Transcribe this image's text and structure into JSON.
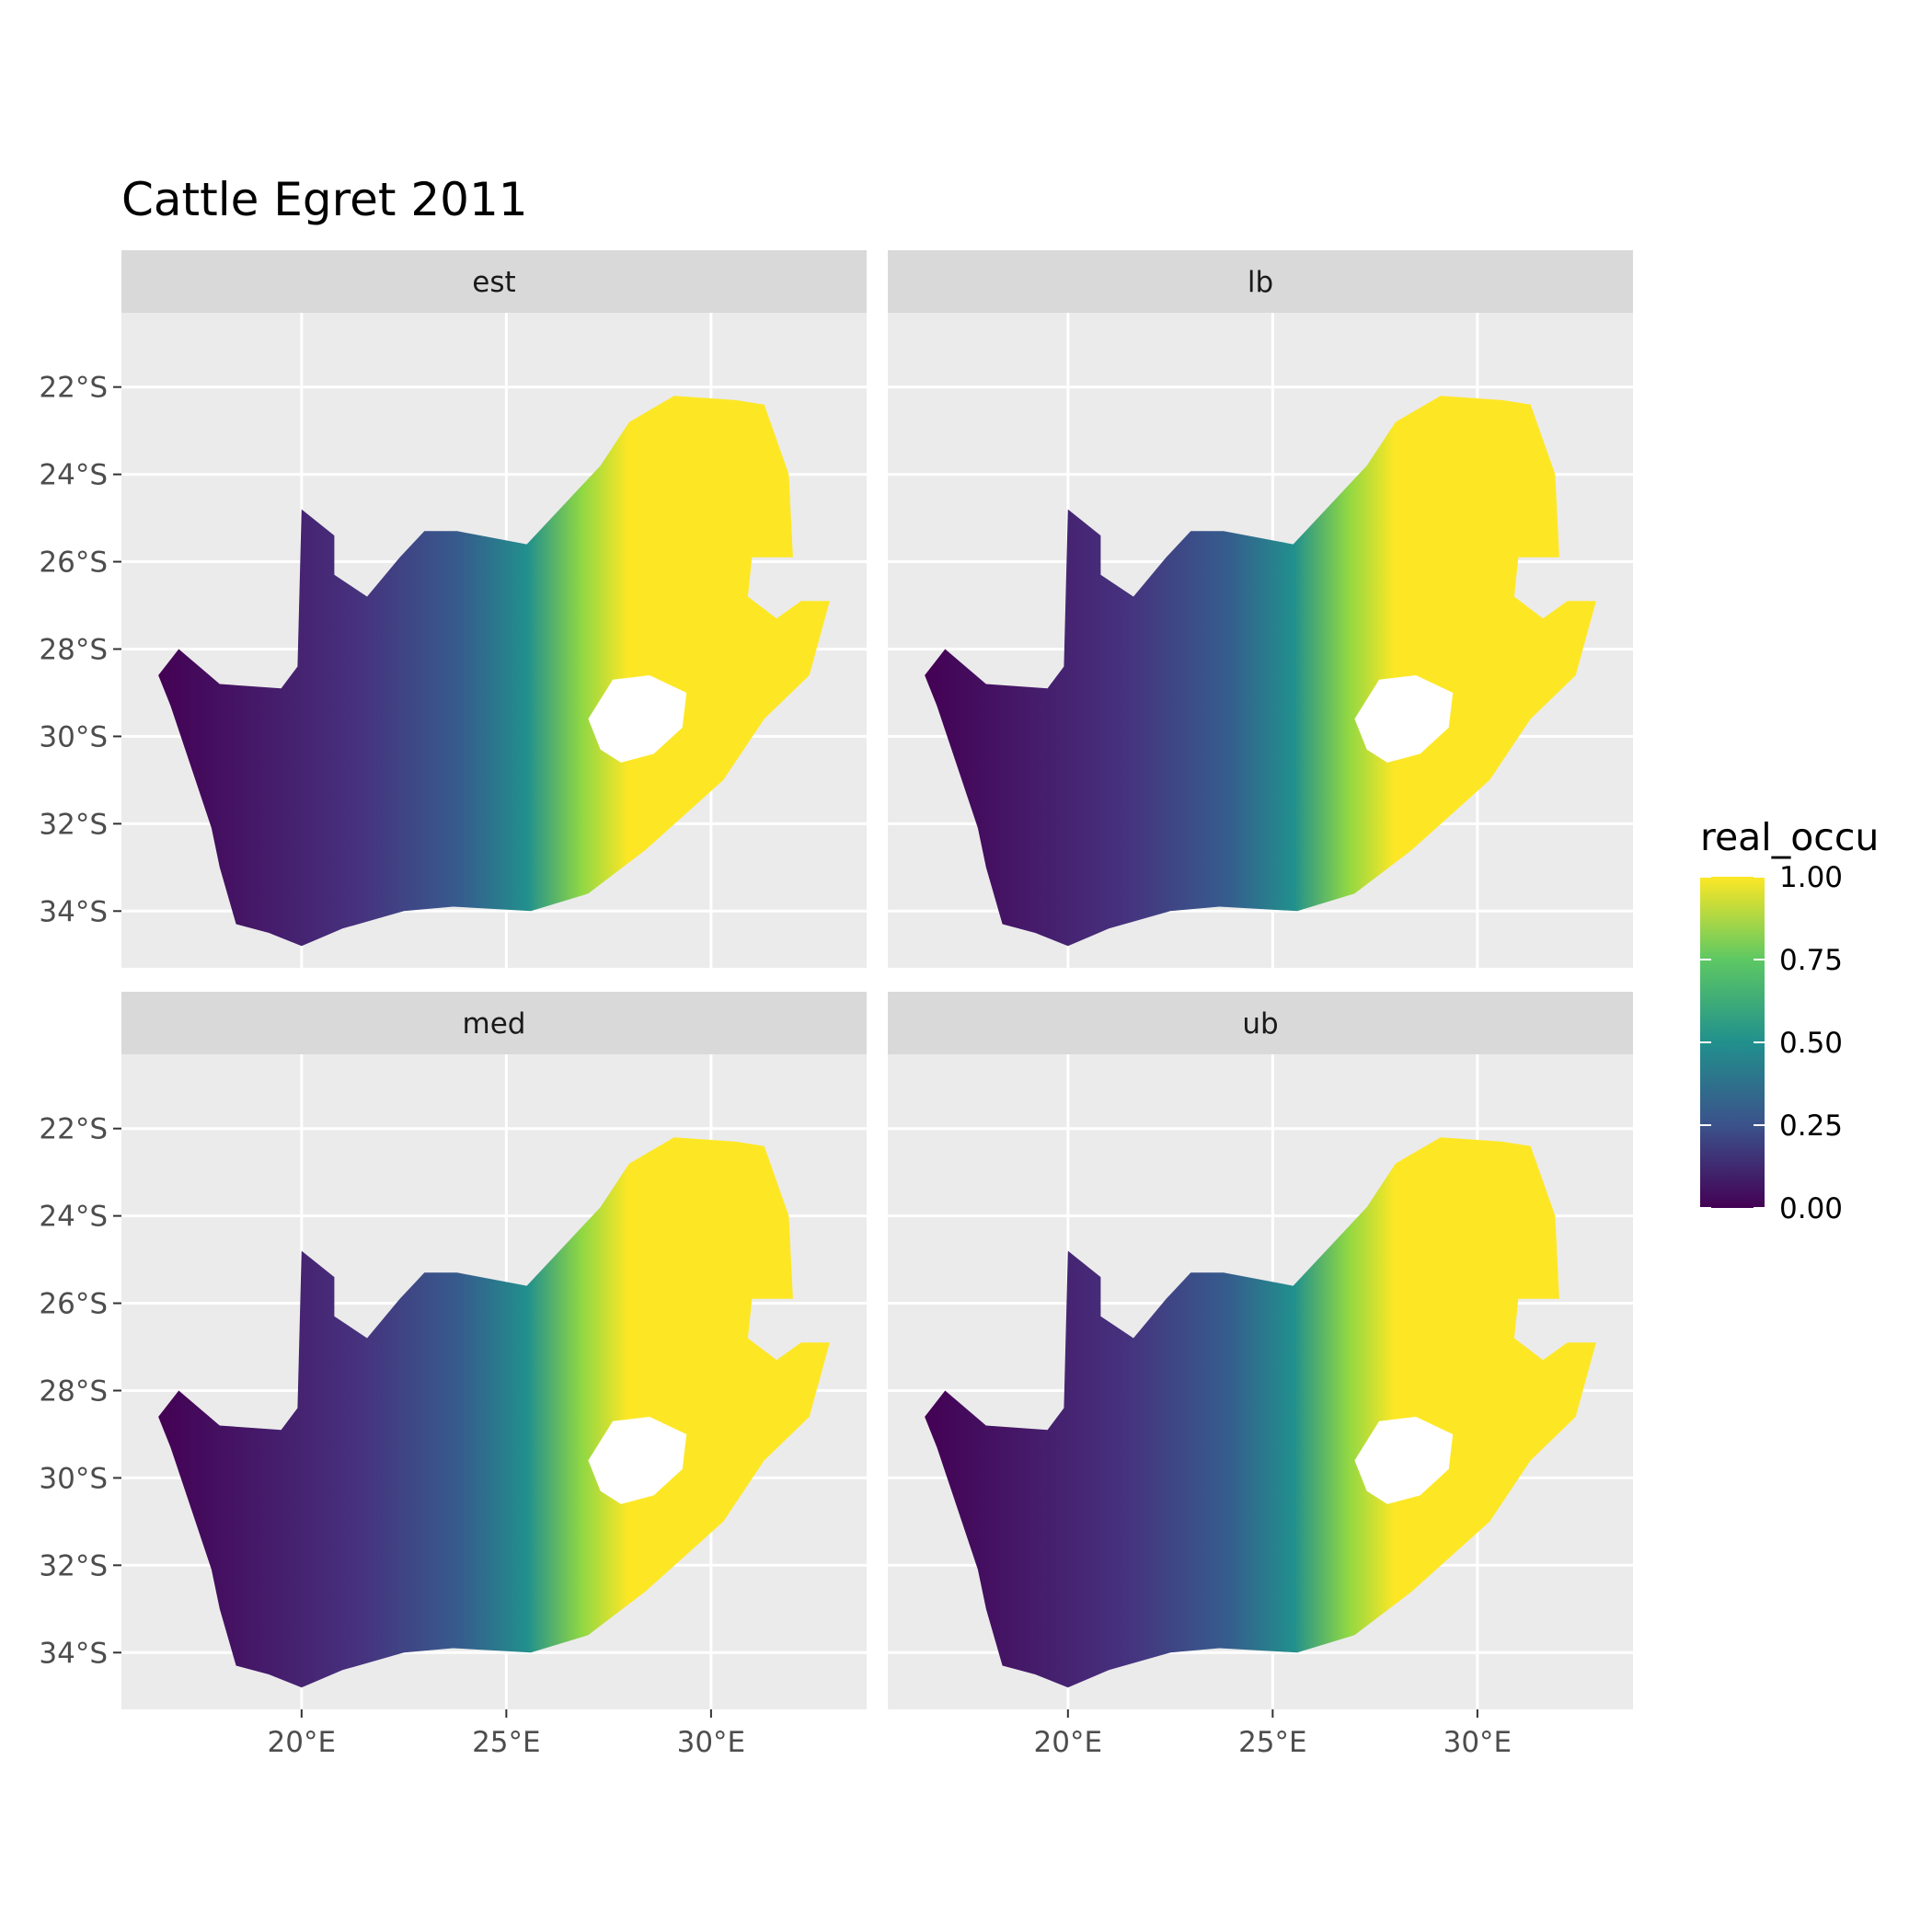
{
  "chart_data": {
    "type": "heatmap",
    "title": "Cattle Egret 2011",
    "xlabel": "",
    "ylabel": "",
    "panels": [
      {
        "label": "est"
      },
      {
        "label": "lb"
      },
      {
        "label": "med"
      },
      {
        "label": "ub"
      }
    ],
    "x_ticks": [
      "20°E",
      "25°E",
      "30°E"
    ],
    "x_tick_values": [
      20,
      25,
      30
    ],
    "y_ticks": [
      "22°S",
      "24°S",
      "26°S",
      "28°S",
      "30°S",
      "32°S",
      "34°S"
    ],
    "y_tick_values": [
      -22,
      -24,
      -26,
      -28,
      -30,
      -32,
      -34
    ],
    "xlim": [
      15.6,
      33.8
    ],
    "ylim": [
      -35.3,
      -20.3
    ],
    "legend": {
      "title": "real_occu",
      "ticks": [
        "1.00",
        "0.75",
        "0.50",
        "0.25",
        "0.00"
      ],
      "tick_values": [
        1.0,
        0.75,
        0.5,
        0.25,
        0.0
      ],
      "range": [
        0,
        1
      ],
      "placement": "right",
      "colors": [
        "#440154",
        "#3b528b",
        "#21908d",
        "#5dc863",
        "#fde725"
      ]
    },
    "panel_background": "#ebebeb",
    "strip_background": "#d9d9d9",
    "grid": true
  }
}
